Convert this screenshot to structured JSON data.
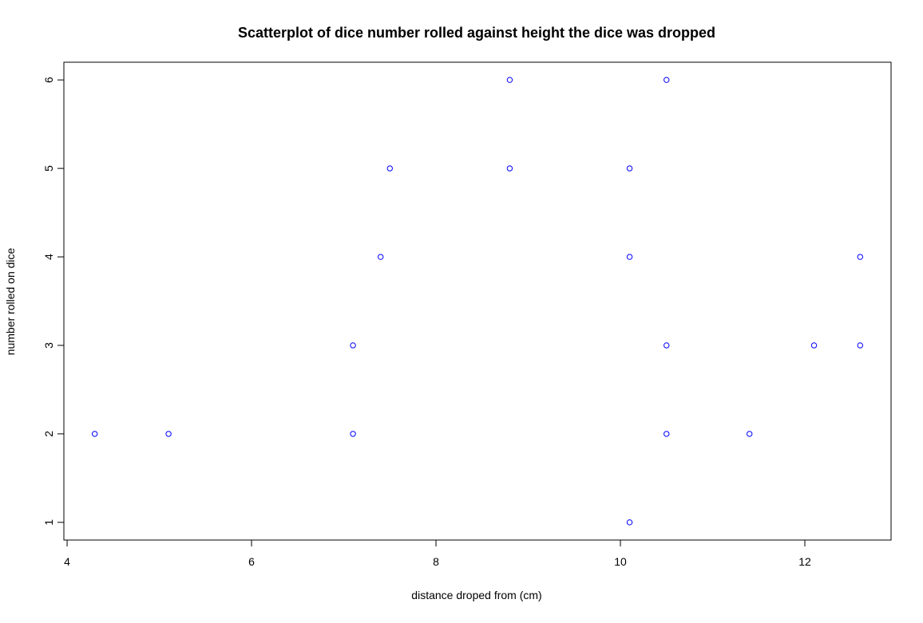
{
  "chart_data": {
    "type": "scatter",
    "title": "Scatterplot of dice number rolled against height the dice was dropped",
    "xlabel": "distance droped from (cm)",
    "ylabel": "number rolled on dice",
    "xlim": [
      3.965,
      12.935
    ],
    "ylim": [
      0.8,
      6.2
    ],
    "xticks": [
      4,
      6,
      8,
      10,
      12
    ],
    "yticks": [
      1,
      2,
      3,
      4,
      5,
      6
    ],
    "grid": false,
    "legend": "none",
    "point_color": "#0000ff",
    "points": [
      {
        "x": 4.3,
        "y": 2
      },
      {
        "x": 5.1,
        "y": 2
      },
      {
        "x": 7.1,
        "y": 3
      },
      {
        "x": 7.1,
        "y": 2
      },
      {
        "x": 7.4,
        "y": 4
      },
      {
        "x": 7.5,
        "y": 5
      },
      {
        "x": 8.8,
        "y": 6
      },
      {
        "x": 8.8,
        "y": 5
      },
      {
        "x": 10.1,
        "y": 5
      },
      {
        "x": 10.1,
        "y": 4
      },
      {
        "x": 10.1,
        "y": 1
      },
      {
        "x": 10.5,
        "y": 6
      },
      {
        "x": 10.5,
        "y": 3
      },
      {
        "x": 10.5,
        "y": 2
      },
      {
        "x": 11.4,
        "y": 2
      },
      {
        "x": 12.1,
        "y": 3
      },
      {
        "x": 12.6,
        "y": 4
      },
      {
        "x": 12.6,
        "y": 3
      }
    ]
  }
}
